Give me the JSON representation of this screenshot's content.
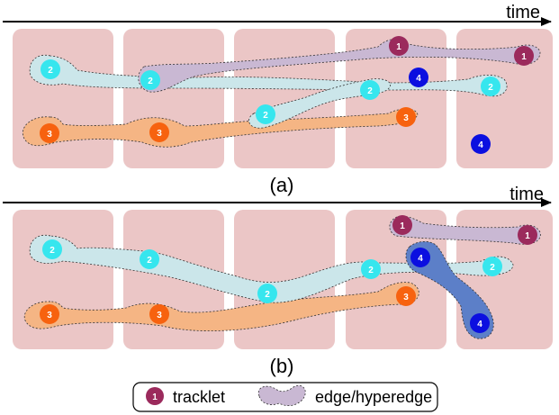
{
  "panels": [
    {
      "caption": "(a)",
      "axis_label": "time",
      "tracklets": [
        {
          "label": "1",
          "kind": "purple"
        },
        {
          "label": "1",
          "kind": "purple"
        },
        {
          "label": "2",
          "kind": "cyan"
        },
        {
          "label": "2",
          "kind": "cyan"
        },
        {
          "label": "2",
          "kind": "cyan"
        },
        {
          "label": "2",
          "kind": "cyan"
        },
        {
          "label": "2",
          "kind": "cyan"
        },
        {
          "label": "3",
          "kind": "orange"
        },
        {
          "label": "3",
          "kind": "orange"
        },
        {
          "label": "3",
          "kind": "orange"
        },
        {
          "label": "4",
          "kind": "blue"
        },
        {
          "label": "4",
          "kind": "blue"
        }
      ]
    },
    {
      "caption": "(b)",
      "axis_label": "time",
      "tracklets": [
        {
          "label": "1",
          "kind": "purple"
        },
        {
          "label": "1",
          "kind": "purple"
        },
        {
          "label": "2",
          "kind": "cyan"
        },
        {
          "label": "2",
          "kind": "cyan"
        },
        {
          "label": "2",
          "kind": "cyan"
        },
        {
          "label": "2",
          "kind": "cyan"
        },
        {
          "label": "2",
          "kind": "cyan"
        },
        {
          "label": "3",
          "kind": "orange"
        },
        {
          "label": "3",
          "kind": "orange"
        },
        {
          "label": "3",
          "kind": "orange"
        },
        {
          "label": "4",
          "kind": "blue"
        },
        {
          "label": "4",
          "kind": "blue"
        }
      ]
    }
  ],
  "legend": {
    "tracklet_symbol": "1",
    "tracklet_label": "tracklet",
    "edge_label": "edge/hyperedge"
  },
  "colors": {
    "frame": "#ebc6c6",
    "purple_node": "#9b2a5c",
    "purple_edge": "#c9b8d3",
    "cyan_node": "#36e6ee",
    "cyan_edge": "#cbe6ea",
    "orange_node": "#f7620f",
    "orange_edge": "#f5b584",
    "blue_node": "#0b0fe0",
    "blue_edge": "#5c7fc8"
  }
}
